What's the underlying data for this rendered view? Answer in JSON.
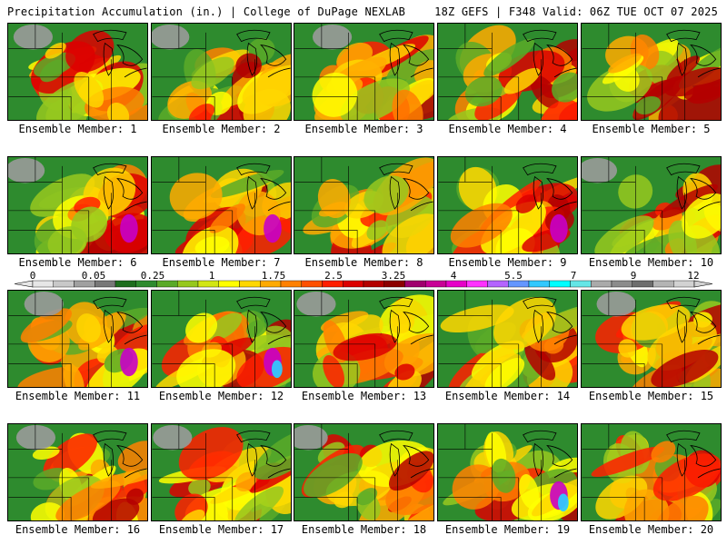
{
  "header": {
    "title": "Precipitation Accumulation (in.) | College of DuPage NEXLAB",
    "run_info": "18Z GEFS | F348 Valid: 06Z TUE OCT 07 2025"
  },
  "caption_prefix": "Ensemble Member:",
  "members": [
    "1",
    "2",
    "3",
    "4",
    "5",
    "6",
    "7",
    "8",
    "9",
    "10",
    "11",
    "12",
    "13",
    "14",
    "15",
    "16",
    "17",
    "18",
    "19",
    "20"
  ],
  "color_scale": {
    "ticks": [
      "0",
      "0.05",
      "0.25",
      "1",
      "1.75",
      "2.5",
      "3.25",
      "4",
      "5.5",
      "7",
      "9",
      "12"
    ],
    "colors": [
      "#e6e6e6",
      "#c8c8c8",
      "#a0a0a0",
      "#787878",
      "#1e6e1e",
      "#2e8b2e",
      "#5aaa28",
      "#96c81e",
      "#d2e614",
      "#ffff00",
      "#ffd700",
      "#ffaa00",
      "#ff8000",
      "#ff5000",
      "#ff1e00",
      "#dc0000",
      "#b40000",
      "#8c0000",
      "#a0006e",
      "#c80096",
      "#e600c8",
      "#ff32ff",
      "#b464ff",
      "#6496ff",
      "#32c8ff",
      "#00ffff",
      "#64e6e6",
      "#aaaaaa",
      "#8c8c8c",
      "#6e6e6e",
      "#b4b4b4",
      "#d2d2d2"
    ]
  }
}
